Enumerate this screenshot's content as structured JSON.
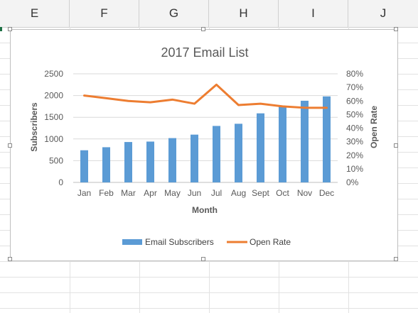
{
  "spreadsheet": {
    "columns": [
      "E",
      "F",
      "G",
      "H",
      "I",
      "J"
    ]
  },
  "chart_data": {
    "type": "bar",
    "title": "2017 Email List",
    "xlabel": "Month",
    "ylabel": "Subscribers",
    "y2label": "Open Rate",
    "categories": [
      "Jan",
      "Feb",
      "Mar",
      "Apr",
      "May",
      "Jun",
      "Jul",
      "Aug",
      "Sept",
      "Oct",
      "Nov",
      "Dec"
    ],
    "ylim": [
      0,
      2500
    ],
    "yticks": [
      0,
      500,
      1000,
      1500,
      2000,
      2500
    ],
    "y2lim": [
      0,
      0.8
    ],
    "y2ticks": [
      "0%",
      "10%",
      "20%",
      "30%",
      "40%",
      "50%",
      "60%",
      "70%",
      "80%"
    ],
    "grid": true,
    "legend_position": "bottom",
    "series": [
      {
        "name": "Email Subscribers",
        "type": "bar",
        "axis": "left",
        "color": "#5b9bd5",
        "values": [
          740,
          810,
          930,
          940,
          1020,
          1100,
          1300,
          1350,
          1590,
          1750,
          1880,
          1980
        ]
      },
      {
        "name": "Open Rate",
        "type": "line",
        "axis": "right",
        "color": "#ed7d31",
        "values": [
          0.64,
          0.62,
          0.6,
          0.59,
          0.61,
          0.58,
          0.72,
          0.57,
          0.58,
          0.56,
          0.55,
          0.55
        ]
      }
    ]
  }
}
